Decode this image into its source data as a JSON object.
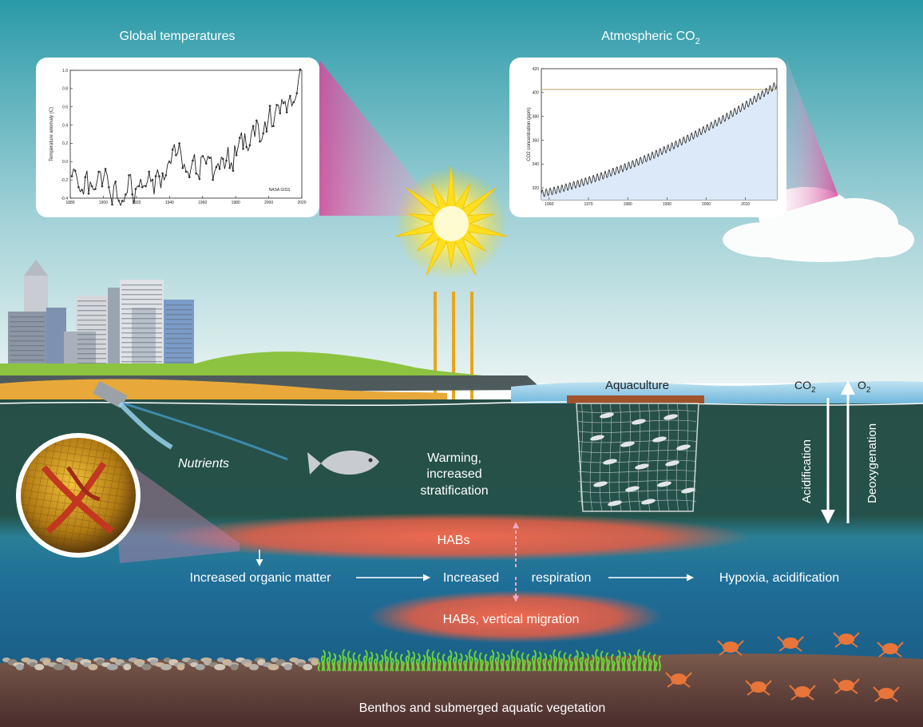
{
  "insets": {
    "temperature": {
      "title": "Global temperatures",
      "ylabel": "Temperature anomaly (C)",
      "yticks": [
        "1.0",
        "0.8",
        "0.6",
        "0.4",
        "0.2",
        "0.0",
        "-0.2",
        "-0.4"
      ],
      "xticks": [
        "1880",
        "1900",
        "1920",
        "1940",
        "1960",
        "1980",
        "2000",
        "2020"
      ],
      "note": "NASA GISS",
      "series": [
        -0.16,
        -0.08,
        -0.1,
        -0.17,
        -0.28,
        -0.33,
        -0.31,
        -0.36,
        -0.17,
        -0.1,
        -0.35,
        -0.22,
        -0.27,
        -0.31,
        -0.3,
        -0.22,
        -0.11,
        -0.11,
        -0.27,
        -0.17,
        -0.08,
        -0.15,
        -0.28,
        -0.37,
        -0.47,
        -0.26,
        -0.22,
        -0.39,
        -0.43,
        -0.48,
        -0.43,
        -0.44,
        -0.36,
        -0.34,
        -0.15,
        -0.14,
        -0.36,
        -0.46,
        -0.3,
        -0.27,
        -0.27,
        -0.19,
        -0.28,
        -0.26,
        -0.27,
        -0.22,
        -0.11,
        -0.22,
        -0.2,
        -0.36,
        -0.16,
        -0.09,
        -0.16,
        -0.29,
        -0.13,
        -0.2,
        -0.15,
        -0.03,
        0.0,
        -0.02,
        0.13,
        0.19,
        0.07,
        0.09,
        0.2,
        0.09,
        -0.07,
        -0.03,
        -0.11,
        -0.11,
        -0.17,
        -0.07,
        0.01,
        0.08,
        -0.13,
        -0.14,
        -0.19,
        0.05,
        0.06,
        0.03,
        -0.02,
        0.06,
        0.04,
        0.05,
        -0.2,
        -0.11,
        -0.06,
        -0.02,
        -0.08,
        0.05,
        0.03,
        -0.08,
        0.01,
        0.16,
        -0.07,
        -0.01,
        -0.1,
        0.18,
        0.07,
        0.16,
        0.26,
        0.32,
        0.14,
        0.31,
        0.16,
        0.12,
        0.18,
        0.32,
        0.39,
        0.27,
        0.45,
        0.41,
        0.22,
        0.23,
        0.31,
        0.44,
        0.33,
        0.46,
        0.61,
        0.38,
        0.39,
        0.53,
        0.62,
        0.62,
        0.53,
        0.68,
        0.64,
        0.66,
        0.54,
        0.66,
        0.72,
        0.61,
        0.65,
        0.68,
        0.75,
        0.9,
        1.01
      ]
    },
    "co2": {
      "title_main": "Atmospheric CO",
      "title_sub": "2",
      "ylabel": "CO2 concentration (ppm)",
      "yticks": [
        "420",
        "400",
        "380",
        "360",
        "340",
        "320"
      ],
      "xticks": [
        "1960",
        "1970",
        "1980",
        "1990",
        "2000",
        "2010"
      ]
    }
  },
  "labels": {
    "aquaculture": "Aquaculture",
    "co2_main": "CO",
    "co2_sub": "2",
    "o2_main": "O",
    "o2_sub": "2",
    "acidification": "Acidification",
    "deoxygenation": "Deoxygenation",
    "nutrients": "Nutrients",
    "warming": [
      "Warming,",
      "increased",
      "stratification"
    ],
    "habs": "HABs",
    "organic_matter": "Increased organic matter",
    "increased": "Increased",
    "respiration": "respiration",
    "hypoxia": "Hypoxia, acidification",
    "habs_migration": "HABs, vertical migration",
    "benthos": "Benthos and submerged aquatic vegetation"
  },
  "colors": {
    "sky_top": "#2a9aa8",
    "water_deep": "#264e46",
    "hab": "#e8614a",
    "sun": "#ffd400",
    "ray": "#e6a817",
    "seabed": "#5a3a34"
  }
}
